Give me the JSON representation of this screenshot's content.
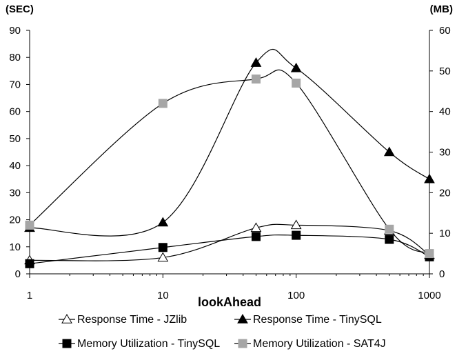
{
  "chart_data": {
    "type": "line",
    "x_scale": "log",
    "x": [
      1,
      10,
      50,
      100,
      500,
      1000
    ],
    "xlabel": "lookAhead",
    "x_ticks": [
      "1",
      "10",
      "100",
      "1000"
    ],
    "y_left": {
      "unit": "(SEC)",
      "range": [
        0,
        90
      ],
      "ticks": [
        "0",
        "10",
        "20",
        "30",
        "40",
        "50",
        "60",
        "70",
        "80",
        "90"
      ]
    },
    "y_right": {
      "unit": "(MB)",
      "range": [
        0,
        60
      ],
      "ticks": [
        "0",
        "10",
        "20",
        "30",
        "40",
        "50",
        "60"
      ]
    },
    "grid": false,
    "legend_position": "bottom",
    "series": [
      {
        "name": "Response Time - JZlib",
        "axis": "left",
        "marker": "open-triangle",
        "color": "#000000",
        "values": [
          5,
          6,
          17,
          18,
          16,
          7
        ]
      },
      {
        "name": "Response Time - TinySQL",
        "axis": "left",
        "marker": "filled-triangle",
        "color": "#000000",
        "values": [
          17,
          19,
          78,
          76,
          45,
          35
        ]
      },
      {
        "name": "Memory Utilization - TinySQL",
        "axis": "right",
        "marker": "square",
        "color": "#000000",
        "values": [
          2.5,
          6.5,
          9.2,
          9.5,
          8.5,
          4.2
        ]
      },
      {
        "name": "Memory Utilization - SAT4J",
        "axis": "right",
        "marker": "square",
        "color": "#a6a6a6",
        "values": [
          12,
          42,
          48,
          47,
          11,
          5
        ]
      }
    ]
  }
}
